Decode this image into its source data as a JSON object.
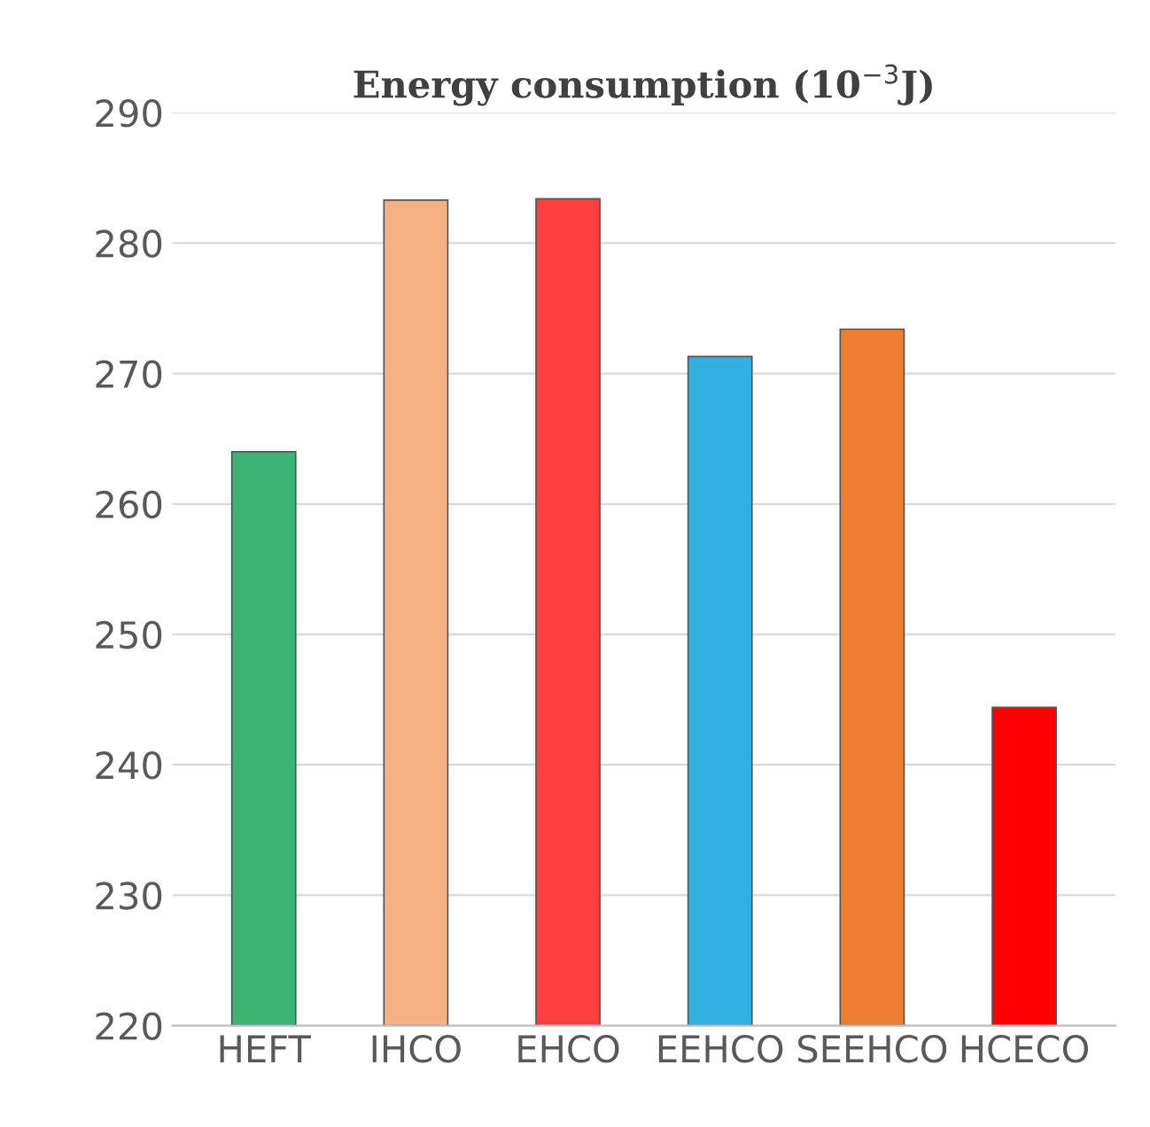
{
  "chart_data": {
    "type": "bar",
    "title": "Energy consumption (10$^{−3}$J)",
    "categories": [
      "HEFT",
      "IHCO",
      "EHCO",
      "EEHCO",
      "SEEHCO",
      "HCECO"
    ],
    "values": [
      264,
      283.3,
      283.4,
      271.3,
      273.4,
      244.4
    ],
    "colors": [
      "#3cb371",
      "#f4b183",
      "#ff4040",
      "#30b0e0",
      "#ed7d31",
      "#ff0000"
    ],
    "ylim": [
      220,
      290
    ],
    "yticks": [
      220,
      230,
      240,
      250,
      260,
      270,
      280,
      290
    ],
    "grid": "y"
  }
}
